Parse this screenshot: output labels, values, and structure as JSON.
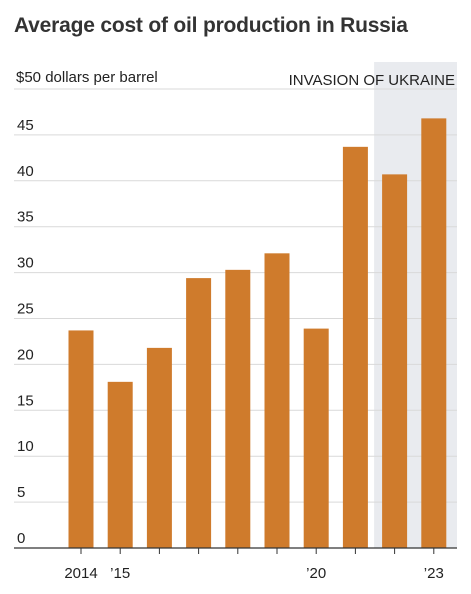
{
  "chart_data": {
    "type": "bar",
    "title": "Average cost of oil production in Russia",
    "ylabel": "$50 dollars per barrel",
    "annotation": "INVASION OF UKRAINE",
    "categories": [
      "2014",
      "2015",
      "2016",
      "2017",
      "2018",
      "2019",
      "2020",
      "2021",
      "2022",
      "2023"
    ],
    "x_tick_labels": [
      {
        "category": "2014",
        "label": "2014"
      },
      {
        "category": "2015",
        "label": "’15"
      },
      {
        "category": "2020",
        "label": "’20"
      },
      {
        "category": "2023",
        "label": "’23"
      }
    ],
    "values": [
      23.7,
      18.1,
      21.8,
      29.4,
      30.3,
      32.1,
      23.9,
      43.7,
      40.7,
      46.8
    ],
    "ylim": [
      0,
      50
    ],
    "yticks": [
      0,
      5,
      10,
      15,
      20,
      25,
      30,
      35,
      40,
      45
    ],
    "shaded_categories": [
      "2022",
      "2023"
    ],
    "grid": true,
    "colors": {
      "bar": "#cf7b2c",
      "shade": "#e9ebef",
      "grid": "#d9d9d9",
      "axis": "#333333"
    }
  }
}
